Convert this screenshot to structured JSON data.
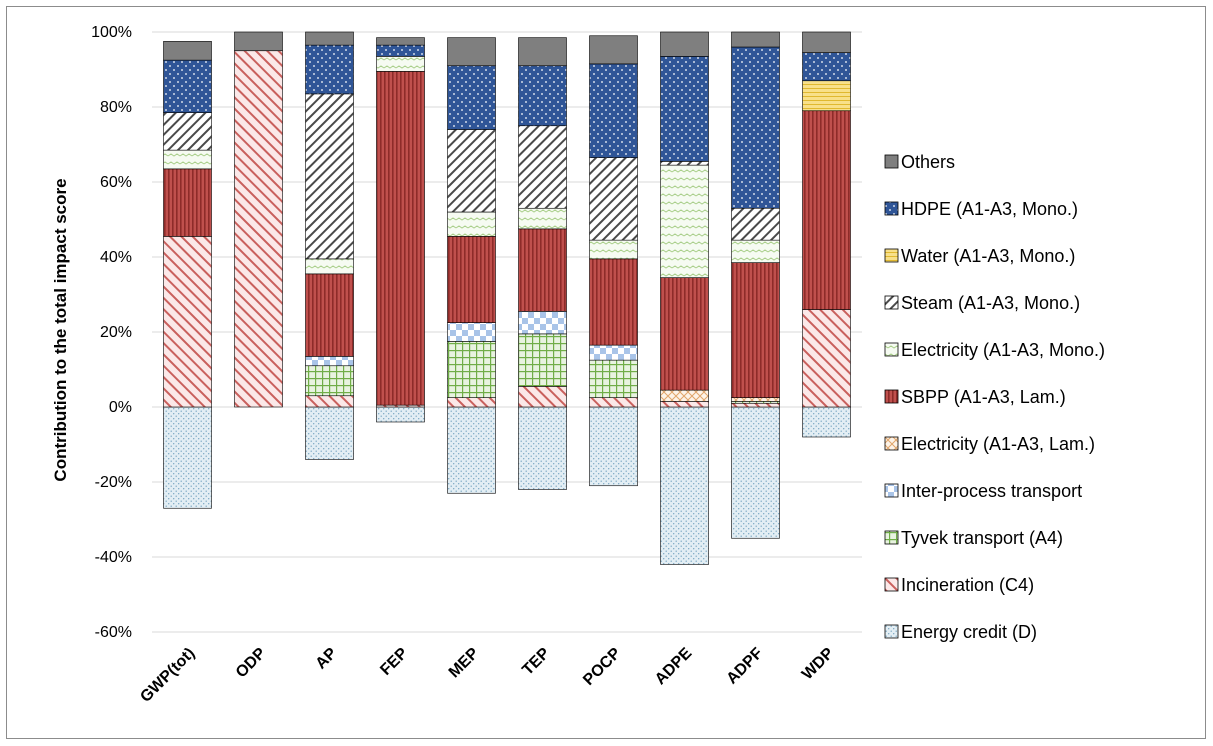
{
  "chart_data": {
    "type": "bar",
    "stacked": true,
    "ylabel": "Contribution to the total impact score",
    "xlabel": "",
    "ylim": [
      -60,
      100
    ],
    "ytick_step": 20,
    "grid": "horizontal",
    "legend_position": "right",
    "categories": [
      "GWP(tot)",
      "ODP",
      "AP",
      "FEP",
      "MEP",
      "TEP",
      "POCP",
      "ADPE",
      "ADPF",
      "WDP"
    ],
    "series": [
      {
        "name": "Energy credit (D)",
        "color": "#dae8f0",
        "values": [
          -27,
          0,
          -14,
          -4,
          -23,
          -22,
          -21,
          -42,
          -35,
          -8
        ]
      },
      {
        "name": "Incineration (C4)",
        "color": "#fbe4e4",
        "values": [
          45.5,
          95,
          3,
          0.5,
          2.5,
          5.5,
          2.5,
          1.5,
          1,
          26
        ]
      },
      {
        "name": "Tyvek transport (A4)",
        "color": "#e2efd9",
        "values": [
          0,
          0,
          8,
          0,
          15,
          14,
          10,
          0,
          0.5,
          0
        ]
      },
      {
        "name": "Inter-process transport",
        "color": "#d6e4f5",
        "values": [
          0,
          0,
          2.5,
          0,
          5,
          6,
          4,
          0,
          0,
          0
        ]
      },
      {
        "name": "Electricity (A1-A3, Lam.)",
        "color": "#fdf1e5",
        "values": [
          0,
          0,
          0,
          0,
          0,
          0,
          0,
          3,
          1,
          0
        ]
      },
      {
        "name": "SBPP (A1-A3, Lam.)",
        "color": "#c0504d",
        "values": [
          18,
          0,
          22,
          89,
          23,
          22,
          23,
          30,
          36,
          53
        ]
      },
      {
        "name": "Electricity (A1-A3, Mono.)",
        "color": "#f2f8ec",
        "values": [
          5,
          0,
          4,
          4,
          6.5,
          5.5,
          5,
          30,
          6,
          0
        ]
      },
      {
        "name": "Steam (A1-A3, Mono.)",
        "color": "#ffffff",
        "values": [
          10,
          0,
          44,
          0,
          22,
          22,
          22,
          1,
          8.5,
          0
        ]
      },
      {
        "name": "Water (A1-A3, Mono.)",
        "color": "#f8e48a",
        "values": [
          0,
          0,
          0,
          0,
          0,
          0,
          0,
          0,
          0,
          8
        ]
      },
      {
        "name": "HDPE (A1-A3, Mono.)",
        "color": "#2f5597",
        "values": [
          14,
          0,
          13,
          3,
          17,
          16,
          25,
          28,
          43,
          7.5
        ]
      },
      {
        "name": "Others",
        "color": "#808080",
        "values": [
          5,
          5,
          3.5,
          2,
          7.5,
          7.5,
          7.5,
          6.5,
          4,
          5.5
        ]
      }
    ],
    "legend_order": [
      "Others",
      "HDPE (A1-A3, Mono.)",
      "Water (A1-A3, Mono.)",
      "Steam (A1-A3, Mono.)",
      "Electricity (A1-A3, Mono.)",
      "SBPP (A1-A3, Lam.)",
      "Electricity (A1-A3, Lam.)",
      "Inter-process transport",
      "Tyvek transport (A4)",
      "Incineration (C4)",
      "Energy credit (D)"
    ]
  }
}
